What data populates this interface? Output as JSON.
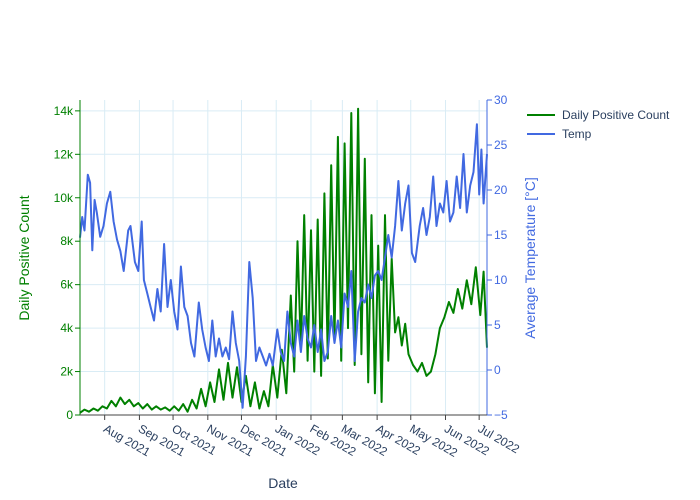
{
  "chart_data": {
    "type": "line",
    "xlabel": "Date",
    "y1label": "Daily Positive Count",
    "y2label": "Average Temperature [°C]",
    "xlim": [
      "2021-07-10",
      "2022-07-08"
    ],
    "y1lim": [
      0,
      14500
    ],
    "y2lim": [
      -5,
      30
    ],
    "grid": true,
    "legend_position": "top-right",
    "x_ticks": [
      "Aug 2021",
      "Sep 2021",
      "Oct 2021",
      "Nov 2021",
      "Dec 2021",
      "Jan 2022",
      "Feb 2022",
      "Mar 2022",
      "Apr 2022",
      "May 2022",
      "Jun 2022",
      "Jul 2022"
    ],
    "x_tick_dates": [
      "2021-08-01",
      "2021-09-01",
      "2021-10-01",
      "2021-11-01",
      "2021-12-01",
      "2022-01-01",
      "2022-02-01",
      "2022-03-01",
      "2022-04-01",
      "2022-05-01",
      "2022-06-01",
      "2022-07-01"
    ],
    "y1_ticks": [
      "0",
      "2k",
      "4k",
      "6k",
      "8k",
      "10k",
      "12k",
      "14k"
    ],
    "y2_ticks": [
      "−5",
      "0",
      "5",
      "10",
      "15",
      "20",
      "25",
      "30"
    ],
    "series": [
      {
        "name": "Daily Positive Count",
        "axis": "y1",
        "color": "#008000",
        "points": [
          [
            "2021-07-10",
            100
          ],
          [
            "2021-07-14",
            250
          ],
          [
            "2021-07-18",
            150
          ],
          [
            "2021-07-22",
            300
          ],
          [
            "2021-07-26",
            200
          ],
          [
            "2021-07-30",
            400
          ],
          [
            "2021-08-03",
            300
          ],
          [
            "2021-08-07",
            650
          ],
          [
            "2021-08-11",
            400
          ],
          [
            "2021-08-15",
            800
          ],
          [
            "2021-08-19",
            500
          ],
          [
            "2021-08-23",
            700
          ],
          [
            "2021-08-27",
            400
          ],
          [
            "2021-08-31",
            550
          ],
          [
            "2021-09-04",
            300
          ],
          [
            "2021-09-08",
            500
          ],
          [
            "2021-09-12",
            250
          ],
          [
            "2021-09-16",
            400
          ],
          [
            "2021-09-20",
            250
          ],
          [
            "2021-09-24",
            350
          ],
          [
            "2021-09-28",
            200
          ],
          [
            "2021-10-02",
            400
          ],
          [
            "2021-10-06",
            200
          ],
          [
            "2021-10-10",
            500
          ],
          [
            "2021-10-14",
            150
          ],
          [
            "2021-10-18",
            700
          ],
          [
            "2021-10-22",
            300
          ],
          [
            "2021-10-26",
            1200
          ],
          [
            "2021-10-30",
            400
          ],
          [
            "2021-11-03",
            1500
          ],
          [
            "2021-11-07",
            600
          ],
          [
            "2021-11-11",
            2100
          ],
          [
            "2021-11-15",
            700
          ],
          [
            "2021-11-19",
            2400
          ],
          [
            "2021-11-23",
            800
          ],
          [
            "2021-11-27",
            2200
          ],
          [
            "2021-12-01",
            600
          ],
          [
            "2021-12-05",
            1800
          ],
          [
            "2021-12-09",
            400
          ],
          [
            "2021-12-13",
            1500
          ],
          [
            "2021-12-17",
            300
          ],
          [
            "2021-12-21",
            1100
          ],
          [
            "2021-12-25",
            400
          ],
          [
            "2021-12-29",
            2300
          ],
          [
            "2022-01-02",
            800
          ],
          [
            "2022-01-06",
            3000
          ],
          [
            "2022-01-10",
            1000
          ],
          [
            "2022-01-14",
            5500
          ],
          [
            "2022-01-17",
            2000
          ],
          [
            "2022-01-20",
            8000
          ],
          [
            "2022-01-23",
            3000
          ],
          [
            "2022-01-26",
            9200
          ],
          [
            "2022-01-29",
            2500
          ],
          [
            "2022-02-01",
            8500
          ],
          [
            "2022-02-04",
            2000
          ],
          [
            "2022-02-07",
            9000
          ],
          [
            "2022-02-10",
            1800
          ],
          [
            "2022-02-13",
            10200
          ],
          [
            "2022-02-16",
            2600
          ],
          [
            "2022-02-19",
            11500
          ],
          [
            "2022-02-22",
            3500
          ],
          [
            "2022-02-25",
            12800
          ],
          [
            "2022-02-28",
            2500
          ],
          [
            "2022-03-03",
            12500
          ],
          [
            "2022-03-06",
            4000
          ],
          [
            "2022-03-09",
            13900
          ],
          [
            "2022-03-12",
            2300
          ],
          [
            "2022-03-15",
            14100
          ],
          [
            "2022-03-18",
            2800
          ],
          [
            "2022-03-21",
            11800
          ],
          [
            "2022-03-24",
            1500
          ],
          [
            "2022-03-27",
            9200
          ],
          [
            "2022-03-30",
            1000
          ],
          [
            "2022-04-02",
            7800
          ],
          [
            "2022-04-05",
            600
          ],
          [
            "2022-04-08",
            9200
          ],
          [
            "2022-04-11",
            2500
          ],
          [
            "2022-04-14",
            7200
          ],
          [
            "2022-04-17",
            3800
          ],
          [
            "2022-04-20",
            4500
          ],
          [
            "2022-04-23",
            3200
          ],
          [
            "2022-04-26",
            4200
          ],
          [
            "2022-04-29",
            2800
          ],
          [
            "2022-05-03",
            2300
          ],
          [
            "2022-05-07",
            2000
          ],
          [
            "2022-05-11",
            2400
          ],
          [
            "2022-05-15",
            1800
          ],
          [
            "2022-05-19",
            2000
          ],
          [
            "2022-05-23",
            2800
          ],
          [
            "2022-05-27",
            4000
          ],
          [
            "2022-05-31",
            4500
          ],
          [
            "2022-06-04",
            5200
          ],
          [
            "2022-06-08",
            4700
          ],
          [
            "2022-06-12",
            5800
          ],
          [
            "2022-06-16",
            4900
          ],
          [
            "2022-06-20",
            6200
          ],
          [
            "2022-06-24",
            5100
          ],
          [
            "2022-06-28",
            6800
          ],
          [
            "2022-07-02",
            4600
          ],
          [
            "2022-07-05",
            6600
          ],
          [
            "2022-07-08",
            3100
          ]
        ]
      },
      {
        "name": "Temp",
        "axis": "y2",
        "color": "#4169E1",
        "points": [
          [
            "2021-07-10",
            14.7
          ],
          [
            "2021-07-12",
            17.0
          ],
          [
            "2021-07-14",
            15.5
          ],
          [
            "2021-07-17",
            21.7
          ],
          [
            "2021-07-19",
            20.8
          ],
          [
            "2021-07-21",
            13.3
          ],
          [
            "2021-07-23",
            18.9
          ],
          [
            "2021-07-25",
            17.5
          ],
          [
            "2021-07-28",
            14.8
          ],
          [
            "2021-07-31",
            16.0
          ],
          [
            "2021-08-03",
            18.5
          ],
          [
            "2021-08-06",
            19.8
          ],
          [
            "2021-08-09",
            16.5
          ],
          [
            "2021-08-12",
            14.5
          ],
          [
            "2021-08-15",
            13.2
          ],
          [
            "2021-08-18",
            11.0
          ],
          [
            "2021-08-22",
            15.5
          ],
          [
            "2021-08-24",
            16.0
          ],
          [
            "2021-08-28",
            12.0
          ],
          [
            "2021-08-31",
            11.0
          ],
          [
            "2021-09-03",
            16.5
          ],
          [
            "2021-09-05",
            10.0
          ],
          [
            "2021-09-08",
            8.5
          ],
          [
            "2021-09-11",
            7.0
          ],
          [
            "2021-09-14",
            5.5
          ],
          [
            "2021-09-17",
            9.0
          ],
          [
            "2021-09-20",
            6.5
          ],
          [
            "2021-09-23",
            14.0
          ],
          [
            "2021-09-26",
            7.0
          ],
          [
            "2021-09-29",
            10.0
          ],
          [
            "2021-10-02",
            6.5
          ],
          [
            "2021-10-05",
            4.5
          ],
          [
            "2021-10-08",
            11.5
          ],
          [
            "2021-10-11",
            7.0
          ],
          [
            "2021-10-14",
            6.0
          ],
          [
            "2021-10-17",
            3.0
          ],
          [
            "2021-10-20",
            1.5
          ],
          [
            "2021-10-24",
            7.5
          ],
          [
            "2021-10-27",
            4.5
          ],
          [
            "2021-10-30",
            2.5
          ],
          [
            "2021-11-02",
            1.0
          ],
          [
            "2021-11-05",
            5.5
          ],
          [
            "2021-11-08",
            1.5
          ],
          [
            "2021-11-11",
            3.5
          ],
          [
            "2021-11-14",
            1.5
          ],
          [
            "2021-11-17",
            2.5
          ],
          [
            "2021-11-20",
            1.2
          ],
          [
            "2021-11-23",
            6.5
          ],
          [
            "2021-11-26",
            3.0
          ],
          [
            "2021-11-29",
            1.0
          ],
          [
            "2021-12-02",
            -4.2
          ],
          [
            "2021-12-05",
            1.5
          ],
          [
            "2021-12-08",
            12.0
          ],
          [
            "2021-12-11",
            8.0
          ],
          [
            "2021-12-14",
            1.0
          ],
          [
            "2021-12-17",
            2.5
          ],
          [
            "2021-12-20",
            1.5
          ],
          [
            "2021-12-23",
            0.5
          ],
          [
            "2021-12-26",
            1.8
          ],
          [
            "2021-12-29",
            0.5
          ],
          [
            "2022-01-02",
            4.5
          ],
          [
            "2022-01-05",
            2.0
          ],
          [
            "2022-01-08",
            1.0
          ],
          [
            "2022-01-11",
            6.5
          ],
          [
            "2022-01-14",
            3.0
          ],
          [
            "2022-01-17",
            1.5
          ],
          [
            "2022-01-20",
            5.5
          ],
          [
            "2022-01-23",
            2.0
          ],
          [
            "2022-01-26",
            6.0
          ],
          [
            "2022-01-29",
            3.5
          ],
          [
            "2022-02-01",
            2.5
          ],
          [
            "2022-02-04",
            5.0
          ],
          [
            "2022-02-07",
            2.0
          ],
          [
            "2022-02-10",
            4.5
          ],
          [
            "2022-02-13",
            1.0
          ],
          [
            "2022-02-16",
            2.0
          ],
          [
            "2022-02-19",
            6.0
          ],
          [
            "2022-02-22",
            3.0
          ],
          [
            "2022-02-25",
            5.5
          ],
          [
            "2022-02-28",
            2.5
          ],
          [
            "2022-03-03",
            8.5
          ],
          [
            "2022-03-06",
            7.0
          ],
          [
            "2022-03-09",
            11.0
          ],
          [
            "2022-03-12",
            1.0
          ],
          [
            "2022-03-15",
            6.5
          ],
          [
            "2022-03-18",
            8.0
          ],
          [
            "2022-03-21",
            7.5
          ],
          [
            "2022-03-24",
            9.5
          ],
          [
            "2022-03-27",
            8.0
          ],
          [
            "2022-03-30",
            10.5
          ],
          [
            "2022-04-02",
            11.0
          ],
          [
            "2022-04-05",
            10.0
          ],
          [
            "2022-04-08",
            12.5
          ],
          [
            "2022-04-11",
            15.0
          ],
          [
            "2022-04-14",
            12.5
          ],
          [
            "2022-04-17",
            16.0
          ],
          [
            "2022-04-20",
            21.0
          ],
          [
            "2022-04-23",
            15.5
          ],
          [
            "2022-04-26",
            18.5
          ],
          [
            "2022-04-29",
            20.5
          ],
          [
            "2022-05-02",
            13.0
          ],
          [
            "2022-05-05",
            12.0
          ],
          [
            "2022-05-09",
            16.0
          ],
          [
            "2022-05-12",
            18.0
          ],
          [
            "2022-05-15",
            15.0
          ],
          [
            "2022-05-18",
            17.0
          ],
          [
            "2022-05-21",
            21.5
          ],
          [
            "2022-05-24",
            16.0
          ],
          [
            "2022-05-27",
            18.5
          ],
          [
            "2022-05-30",
            17.5
          ],
          [
            "2022-06-02",
            21.0
          ],
          [
            "2022-06-05",
            16.5
          ],
          [
            "2022-06-08",
            17.5
          ],
          [
            "2022-06-11",
            21.5
          ],
          [
            "2022-06-14",
            18.0
          ],
          [
            "2022-06-17",
            24.0
          ],
          [
            "2022-06-20",
            17.5
          ],
          [
            "2022-06-23",
            20.5
          ],
          [
            "2022-06-26",
            22.0
          ],
          [
            "2022-06-29",
            27.3
          ],
          [
            "2022-07-01",
            19.5
          ],
          [
            "2022-07-03",
            24.5
          ],
          [
            "2022-07-05",
            18.5
          ],
          [
            "2022-07-08",
            24.0
          ]
        ]
      }
    ]
  }
}
